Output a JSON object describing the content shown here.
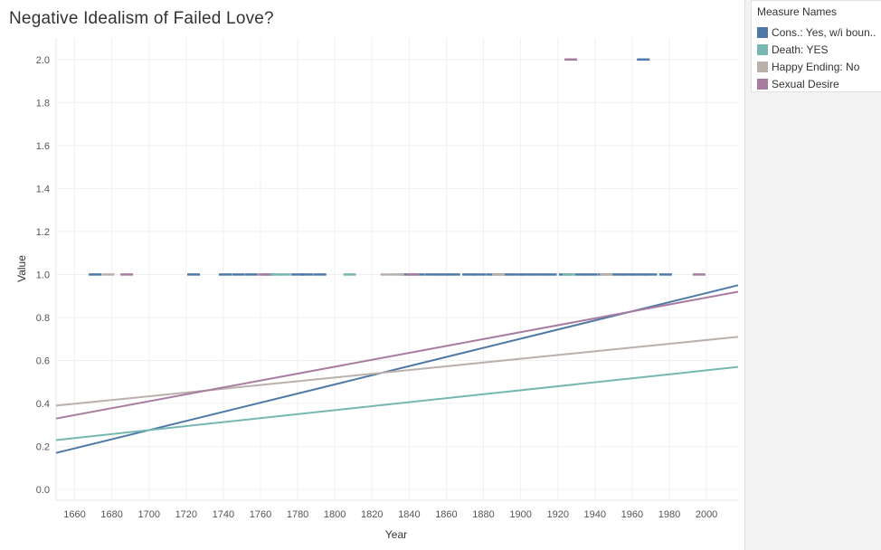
{
  "title": "Negative Idealism of Failed Love?",
  "legend": {
    "title": "Measure Names",
    "items": [
      {
        "label": "Cons.: Yes, w/i boun..",
        "color": "#4e79a7"
      },
      {
        "label": "Death: YES",
        "color": "#76b7b2"
      },
      {
        "label": "Happy Ending: No",
        "color": "#bab0ac"
      },
      {
        "label": "Sexual Desire",
        "color": "#a87ca0"
      }
    ]
  },
  "chart_data": {
    "type": "scatter",
    "title": "Negative Idealism of Failed Love?",
    "xlabel": "Year",
    "ylabel": "Value",
    "xlim": [
      1650,
      2017
    ],
    "ylim": [
      -0.05,
      2.1
    ],
    "x_ticks": [
      "1660",
      "1680",
      "1700",
      "1720",
      "1740",
      "1760",
      "1780",
      "1800",
      "1820",
      "1840",
      "1860",
      "1880",
      "1900",
      "1920",
      "1940",
      "1960",
      "1980",
      "2000"
    ],
    "y_ticks": [
      "0.0",
      "0.2",
      "0.4",
      "0.6",
      "0.8",
      "1.0",
      "1.2",
      "1.4",
      "1.6",
      "1.8",
      "2.0"
    ],
    "grid": true,
    "legend_position": "right",
    "series": [
      {
        "name": "Cons.: Yes, w/i boun..",
        "color": "#4e79a7",
        "points": [
          [
            1671,
            1
          ],
          [
            1724,
            1
          ],
          [
            1741,
            1
          ],
          [
            1748,
            1
          ],
          [
            1755,
            1
          ],
          [
            1764,
            1
          ],
          [
            1780,
            1
          ],
          [
            1785,
            1
          ],
          [
            1792,
            1
          ],
          [
            1838,
            1
          ],
          [
            1845,
            1
          ],
          [
            1852,
            1
          ],
          [
            1858,
            1
          ],
          [
            1864,
            1
          ],
          [
            1872,
            1
          ],
          [
            1878,
            1
          ],
          [
            1885,
            1
          ],
          [
            1892,
            1
          ],
          [
            1898,
            1
          ],
          [
            1904,
            1
          ],
          [
            1910,
            1
          ],
          [
            1916,
            1
          ],
          [
            1924,
            1
          ],
          [
            1932,
            1
          ],
          [
            1938,
            1
          ],
          [
            1945,
            1
          ],
          [
            1952,
            1
          ],
          [
            1958,
            1
          ],
          [
            1964,
            1
          ],
          [
            1970,
            1
          ],
          [
            1978,
            1
          ],
          [
            1966,
            2
          ]
        ],
        "trend": [
          [
            1650,
            0.17
          ],
          [
            2017,
            0.95
          ]
        ]
      },
      {
        "name": "Death: YES",
        "color": "#76b7b2",
        "points": [
          [
            1768,
            1
          ],
          [
            1773,
            1
          ],
          [
            1808,
            1
          ],
          [
            1926,
            1
          ]
        ],
        "trend": [
          [
            1650,
            0.23
          ],
          [
            2017,
            0.57
          ]
        ]
      },
      {
        "name": "Happy Ending: No",
        "color": "#bab0ac",
        "points": [
          [
            1678,
            1
          ],
          [
            1828,
            1
          ],
          [
            1834,
            1
          ],
          [
            1888,
            1
          ],
          [
            1946,
            1
          ]
        ],
        "trend": [
          [
            1650,
            0.39
          ],
          [
            2017,
            0.71
          ]
        ]
      },
      {
        "name": "Sexual Desire",
        "color": "#a87ca0",
        "points": [
          [
            1688,
            1
          ],
          [
            1762,
            1
          ],
          [
            1842,
            1
          ],
          [
            1996,
            1
          ],
          [
            1927,
            2
          ]
        ],
        "trend": [
          [
            1650,
            0.33
          ],
          [
            2017,
            0.92
          ]
        ]
      }
    ]
  }
}
